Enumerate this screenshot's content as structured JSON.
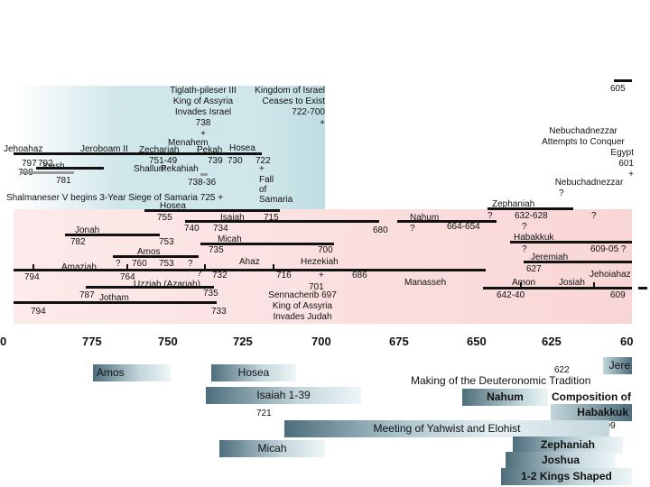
{
  "regions": {
    "israel_color": "#cfe6ea",
    "judah_color": "#fbdcdc"
  },
  "israel": {
    "assyria_note": [
      "Tiglath-pileser III",
      "King of Assyria",
      "Invades Israel",
      "738",
      "+"
    ],
    "israel_end_note": [
      "Kingdom of Israel",
      "Ceases to Exist",
      "722-700",
      "+"
    ],
    "menahem": "Menahem",
    "jehoahaz": "Jehoahaz",
    "jeroboam": "Jeroboam II",
    "zechariah": "Zechariah",
    "pekah": "Pekah",
    "hosea_king": "Hosea",
    "d751": "751-49",
    "d739": "739",
    "d730": "730",
    "d722": "722",
    "d797": "797",
    "d792": "792",
    "joash": "Joash",
    "d798": "798",
    "shallum": "Shallum",
    "pekahiah": "Pekahiah",
    "plus1": "+",
    "d781": "781",
    "d738_36": "738-36",
    "fall": [
      "Fall",
      "of",
      "Samaria"
    ],
    "shalmaneser": "Shalmaneser V begins 3-Year Siege of Samaria 725 +",
    "hosea_prophet": "Hosea"
  },
  "judah": {
    "d755": "755",
    "isaiah": "Isaiah",
    "d715": "715",
    "d740": "740",
    "d734": "734",
    "jonah": "Jonah",
    "d782": "782",
    "d753": "753",
    "micah": "Micah",
    "d735": "735",
    "amos": "Amos",
    "d700": "700",
    "q1": "?",
    "d760": "760",
    "d753b": "753",
    "q2": "?",
    "ahaz": "Ahaz",
    "hezekiah": "Hezekiah",
    "amaziah": "Amaziah",
    "d794": "794",
    "d764": "764",
    "q3": "?",
    "d732": "732",
    "d716": "716",
    "plus2": "+",
    "d686": "686",
    "uzziah": "Uzziah (Azariah)",
    "d701": "701",
    "d787": "787",
    "jotham": "Jotham",
    "sennacherib": [
      "Sennacherib 697",
      "King of Assyria",
      "Invades Judah"
    ],
    "d735b": "735",
    "d794b": "794",
    "d733": "733",
    "d680": "680",
    "nahum": "Nahum",
    "nahum_q": "?",
    "d664": "664-654",
    "manasseh": "Manasseh"
  },
  "right": {
    "d605": "605",
    "nebu1": [
      "Nebuchadnezzar",
      "Attempts to Conquer",
      "Egypt",
      "601",
      "+"
    ],
    "nebu2": [
      "Nebuchadnezzar",
      "?"
    ],
    "zephaniah": "Zephaniah",
    "zq": "?",
    "d632": "632-628",
    "zq2": "?",
    "zq3": "?",
    "habakkuk": "Habakkuk",
    "hq": "?",
    "d609_05": "609-05 ?",
    "jeremiah": "Jeremiah",
    "d627": "627",
    "amon": "Amon",
    "josiah": "Josiah",
    "jehoiahaz": "Jehoiahaz",
    "d642": "642-40",
    "d609": "609"
  },
  "axis": [
    "0",
    "775",
    "750",
    "725",
    "700",
    "675",
    "650",
    "625",
    "60"
  ],
  "bottom": {
    "amos": "Amos",
    "hosea": "Hosea",
    "isaiah": "Isaiah 1-39",
    "d721": "721",
    "micah": "Micah",
    "d622": "622",
    "jere": "Jere",
    "deut": "Making of the Deuteronomic Tradition",
    "nahum": "Nahum",
    "composition": "Composition of",
    "habakkuk": "Habakkuk",
    "d609": "609",
    "yahwist": "Meeting of Yahwist and Elohist",
    "zephaniah": "Zephaniah",
    "joshua": "Joshua",
    "kings": "1-2 Kings Shaped"
  }
}
